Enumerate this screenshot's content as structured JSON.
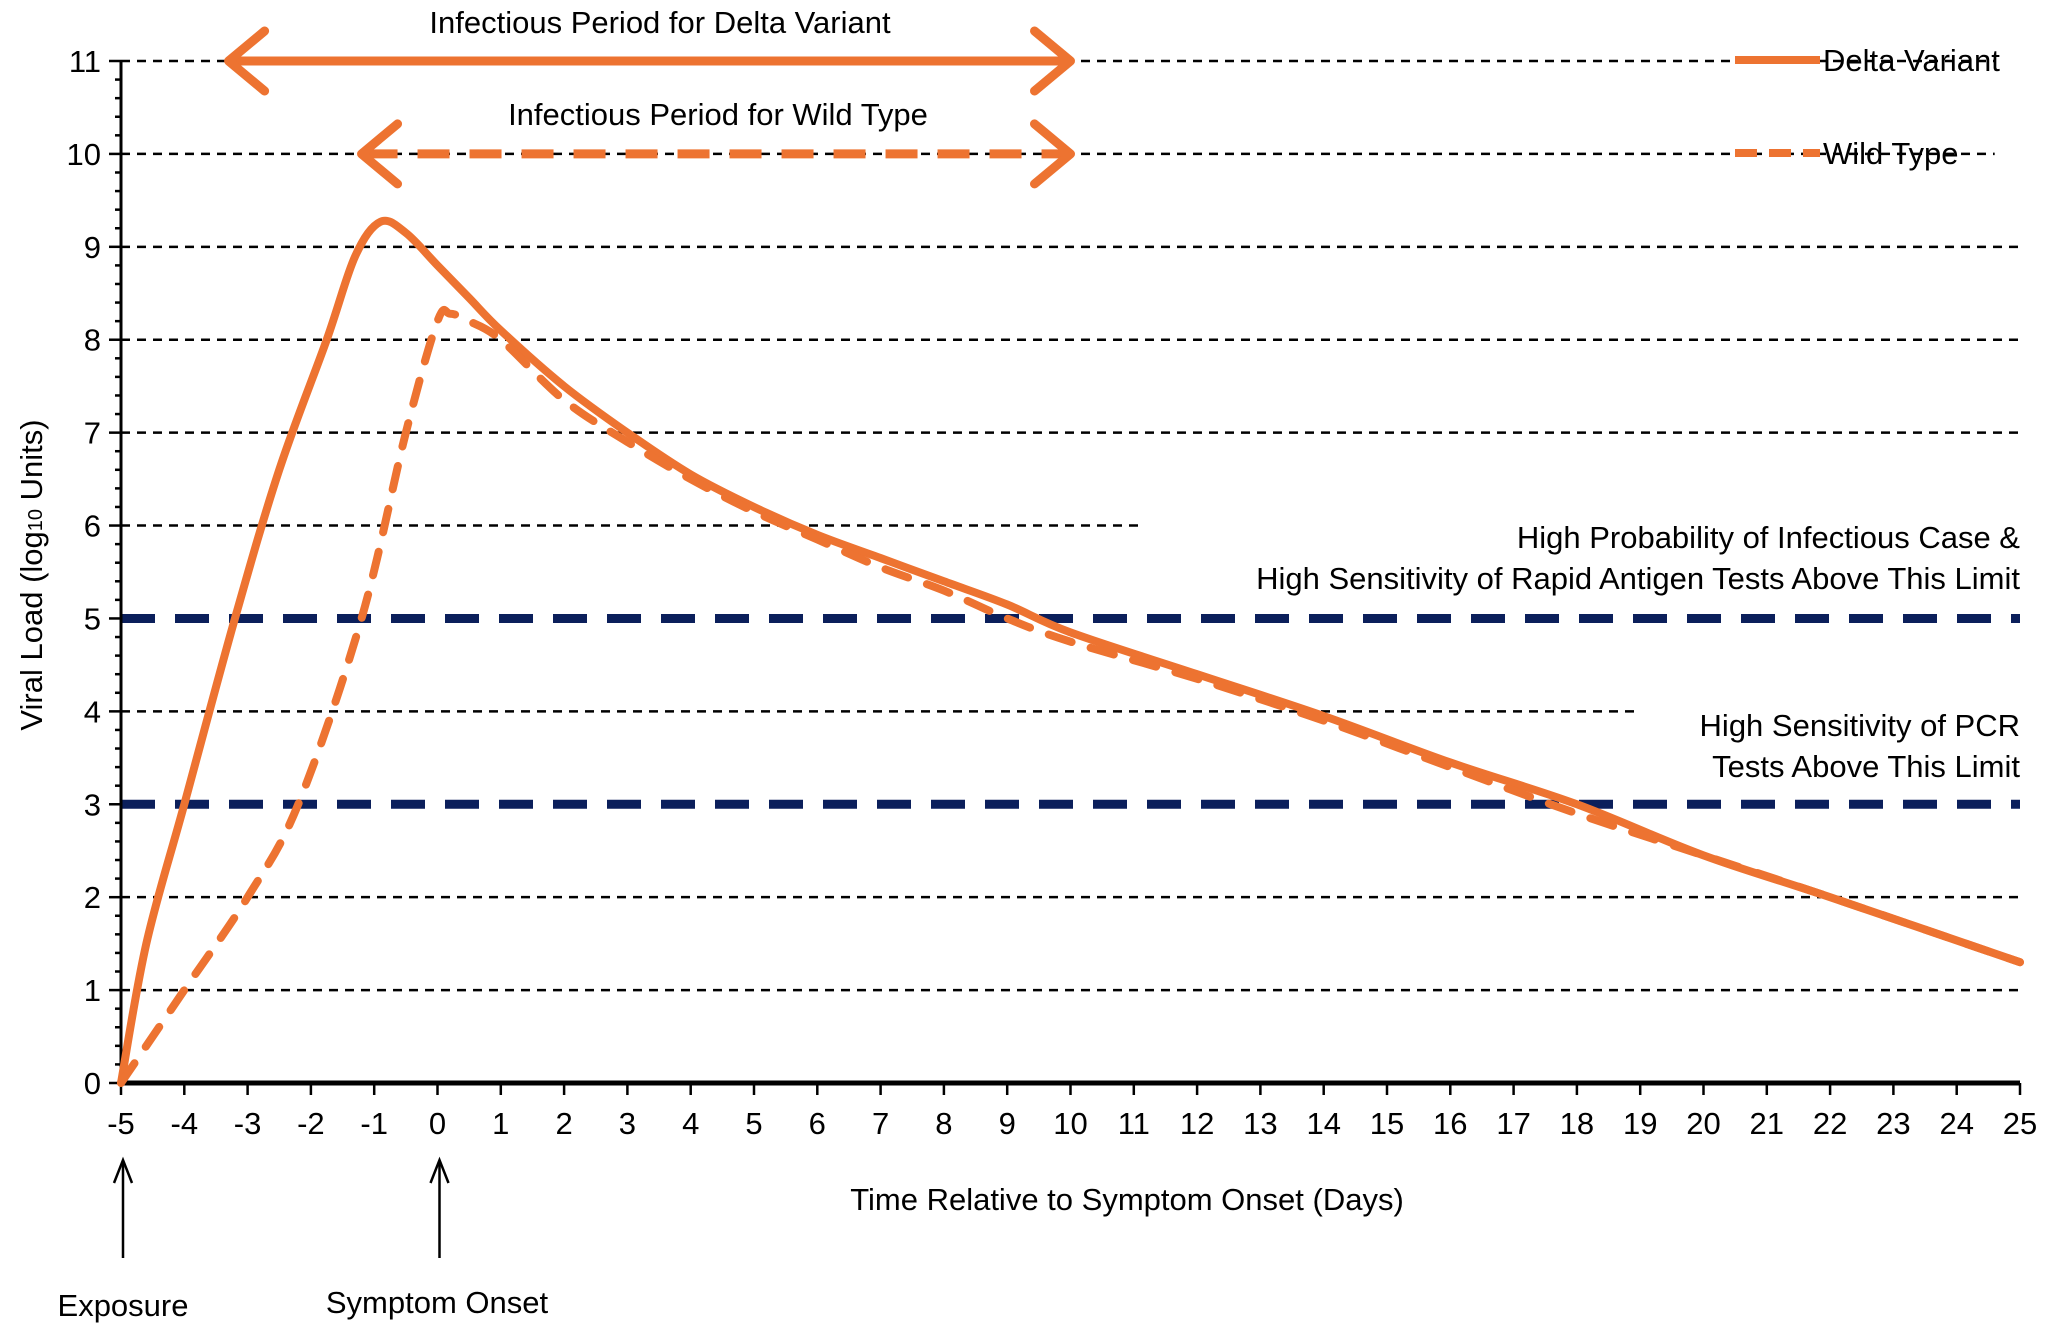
{
  "chart_data": {
    "type": "line",
    "xlabel": "Time Relative to Symptom Onset (Days)",
    "ylabel_main": "Viral Load (log",
    "ylabel_sub": "10",
    "ylabel_end": " Units)",
    "xlim": [
      -5,
      25
    ],
    "ylim": [
      0,
      11
    ],
    "x_ticks": [
      -5,
      -4,
      -3,
      -2,
      -1,
      0,
      1,
      2,
      3,
      4,
      5,
      6,
      7,
      8,
      9,
      10,
      11,
      12,
      13,
      14,
      15,
      16,
      17,
      18,
      19,
      20,
      21,
      22,
      23,
      24,
      25
    ],
    "y_ticks": [
      0,
      1,
      2,
      3,
      4,
      5,
      6,
      7,
      8,
      9,
      10,
      11
    ],
    "grid": true,
    "legend_position": "top-right",
    "colors": {
      "series": "#ED7331",
      "threshold": "#0B1F5B",
      "grid": "#000000"
    },
    "series": [
      {
        "name": "Delta Variant",
        "style": "solid",
        "x": [
          -5,
          -4.6,
          -4,
          -3.2,
          -2.5,
          -1.75,
          -1.3,
          -0.9,
          -0.5,
          0,
          0.5,
          1,
          2,
          3,
          4,
          5,
          6,
          7,
          8,
          9,
          10,
          12,
          14,
          16,
          18,
          20,
          22,
          25
        ],
        "y": [
          0,
          1.5,
          3.0,
          5.0,
          6.6,
          8.0,
          8.9,
          9.27,
          9.15,
          8.8,
          8.45,
          8.1,
          7.5,
          7.0,
          6.55,
          6.2,
          5.9,
          5.65,
          5.4,
          5.15,
          4.85,
          4.4,
          3.95,
          3.45,
          3.0,
          2.45,
          2.0,
          1.3
        ]
      },
      {
        "name": "Wild Type",
        "style": "dashed",
        "x": [
          -5,
          -4,
          -3,
          -2.2,
          -1.2,
          -0.5,
          0,
          0.2,
          0.5,
          1,
          2,
          3,
          4,
          5,
          6,
          7,
          8,
          9,
          10,
          12,
          14,
          16,
          18,
          20,
          22,
          25
        ],
        "y": [
          0,
          1.0,
          2.0,
          3.0,
          5.0,
          7.0,
          8.2,
          8.28,
          8.2,
          8.0,
          7.35,
          6.9,
          6.5,
          6.15,
          5.85,
          5.55,
          5.3,
          5.0,
          4.75,
          4.35,
          3.9,
          3.4,
          2.9,
          2.45,
          2.0,
          1.3
        ]
      }
    ],
    "thresholds": [
      {
        "y": 5,
        "label_lines": [
          "High Probability of Infectious Case &",
          "High Sensitivity of Rapid Antigen Tests Above This Limit"
        ]
      },
      {
        "y": 3,
        "label_lines": [
          "High Sensitivity of PCR",
          "Tests Above This Limit"
        ]
      }
    ],
    "infectious_periods": [
      {
        "label": "Infectious Period for Delta Variant",
        "x_start": -3.3,
        "x_end": 10,
        "y": 11,
        "style": "solid"
      },
      {
        "label": "Infectious Period for Wild Type",
        "x_start": -1.2,
        "x_end": 10,
        "y": 10,
        "style": "dashed"
      }
    ],
    "gridlines": [
      {
        "y": 1,
        "x_end": 25
      },
      {
        "y": 2,
        "x_end": 25
      },
      {
        "y": 4,
        "x_end": 19
      },
      {
        "y": 6,
        "x_end": 11.1
      },
      {
        "y": 7,
        "x_end": 25
      },
      {
        "y": 8,
        "x_end": 25
      },
      {
        "y": 9,
        "x_end": 25
      },
      {
        "y": 10,
        "x_end": 24.6
      },
      {
        "y": 11,
        "x_end": 24.6
      }
    ],
    "markers": [
      {
        "label": "Exposure",
        "x": -5
      },
      {
        "label": "Symptom Onset",
        "x": 0
      }
    ]
  }
}
